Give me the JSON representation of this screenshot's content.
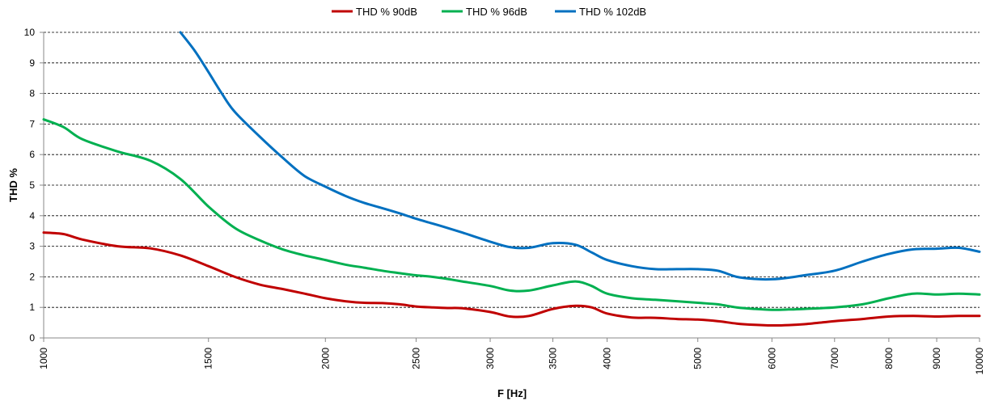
{
  "chart_data": {
    "type": "line",
    "xlabel": "F [Hz]",
    "ylabel": "THD %",
    "x_scale": "log",
    "xlim": [
      1000,
      10000
    ],
    "ylim": [
      0,
      10
    ],
    "x_ticks": [
      "1000",
      "1500",
      "2000",
      "2500",
      "3000",
      "3500",
      "4000",
      "5000",
      "6000",
      "7000",
      "8000",
      "9000",
      "10000"
    ],
    "y_ticks": [
      "0",
      "1",
      "2",
      "3",
      "4",
      "5",
      "6",
      "7",
      "8",
      "9",
      "10"
    ],
    "grid": "horizontal dashed",
    "legend": "top-center",
    "series": [
      {
        "name": "THD % 90dB",
        "color": "#c00000",
        "x": [
          1000,
          1050,
          1100,
          1200,
          1300,
          1400,
          1500,
          1600,
          1700,
          1800,
          1900,
          2000,
          2100,
          2200,
          2300,
          2400,
          2500,
          2600,
          2700,
          2800,
          3000,
          3150,
          3300,
          3500,
          3700,
          3850,
          4000,
          4250,
          4500,
          4750,
          5000,
          5250,
          5500,
          5750,
          6000,
          6250,
          6500,
          7000,
          7500,
          8000,
          8500,
          9000,
          9500,
          10000
        ],
        "y": [
          3.45,
          3.4,
          3.22,
          3.0,
          2.93,
          2.7,
          2.35,
          2.0,
          1.75,
          1.6,
          1.45,
          1.3,
          1.2,
          1.15,
          1.14,
          1.1,
          1.03,
          1.0,
          0.98,
          0.97,
          0.85,
          0.7,
          0.72,
          0.95,
          1.05,
          1.0,
          0.8,
          0.67,
          0.66,
          0.62,
          0.6,
          0.55,
          0.47,
          0.43,
          0.41,
          0.42,
          0.45,
          0.55,
          0.62,
          0.7,
          0.72,
          0.7,
          0.72,
          0.72
        ]
      },
      {
        "name": "THD % 96dB",
        "color": "#00b050",
        "x": [
          1000,
          1050,
          1100,
          1200,
          1300,
          1400,
          1500,
          1600,
          1700,
          1800,
          1900,
          2000,
          2100,
          2200,
          2300,
          2400,
          2500,
          2600,
          2700,
          2800,
          3000,
          3150,
          3300,
          3500,
          3700,
          3850,
          4000,
          4250,
          4500,
          4750,
          5000,
          5250,
          5500,
          5750,
          6000,
          6250,
          6500,
          7000,
          7500,
          8000,
          8500,
          9000,
          9500,
          10000
        ],
        "y": [
          7.15,
          6.9,
          6.5,
          6.1,
          5.8,
          5.2,
          4.3,
          3.6,
          3.2,
          2.9,
          2.7,
          2.55,
          2.4,
          2.3,
          2.2,
          2.12,
          2.05,
          2.0,
          1.93,
          1.85,
          1.7,
          1.55,
          1.55,
          1.72,
          1.85,
          1.7,
          1.45,
          1.3,
          1.25,
          1.2,
          1.15,
          1.1,
          1.0,
          0.95,
          0.92,
          0.93,
          0.95,
          1.0,
          1.1,
          1.3,
          1.45,
          1.42,
          1.45,
          1.42
        ]
      },
      {
        "name": "THD % 102dB",
        "color": "#0070c0",
        "x": [
          1400,
          1450,
          1500,
          1550,
          1600,
          1700,
          1800,
          1900,
          2000,
          2100,
          2200,
          2300,
          2400,
          2500,
          2600,
          2700,
          2800,
          3000,
          3150,
          3300,
          3500,
          3700,
          3850,
          4000,
          4250,
          4500,
          4750,
          5000,
          5250,
          5500,
          5750,
          6000,
          6250,
          6500,
          7000,
          7500,
          8000,
          8500,
          9000,
          9500,
          10000
        ],
        "y": [
          10.0,
          9.4,
          8.7,
          8.0,
          7.4,
          6.6,
          5.9,
          5.3,
          4.95,
          4.65,
          4.42,
          4.25,
          4.08,
          3.9,
          3.75,
          3.6,
          3.45,
          3.15,
          2.97,
          2.95,
          3.1,
          3.05,
          2.8,
          2.55,
          2.35,
          2.25,
          2.25,
          2.25,
          2.2,
          2.0,
          1.93,
          1.92,
          1.97,
          2.05,
          2.2,
          2.5,
          2.75,
          2.9,
          2.92,
          2.95,
          2.82
        ]
      }
    ]
  }
}
